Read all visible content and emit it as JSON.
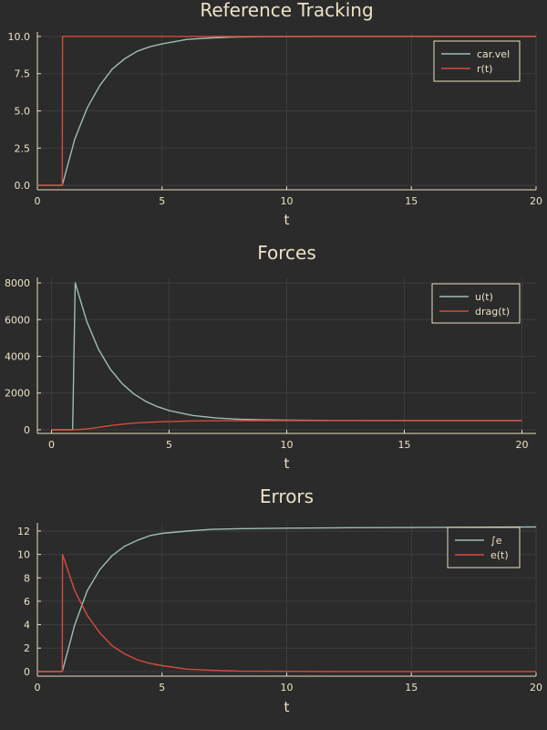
{
  "chart_data": [
    {
      "type": "line",
      "title": "Reference Tracking",
      "xlabel": "t",
      "ylabel": "",
      "xlim": [
        0,
        20
      ],
      "ylim": [
        -0.3,
        10.3
      ],
      "xticks": [
        0,
        5,
        10,
        15,
        20
      ],
      "xtick_labels": [
        "0",
        "5",
        "10",
        "15",
        "20"
      ],
      "yticks": [
        0,
        2.5,
        5,
        7.5,
        10
      ],
      "ytick_labels": [
        "0.0",
        "2.5",
        "5.0",
        "7.5",
        "10.0"
      ],
      "grid": true,
      "legend_position": "top-right",
      "series": [
        {
          "name": "car.vel",
          "color": "#9fbcb4",
          "x": [
            0,
            1,
            1.5,
            2,
            2.5,
            3,
            3.5,
            4,
            4.5,
            5,
            6,
            7,
            8,
            9,
            10,
            12,
            15,
            20
          ],
          "y": [
            0,
            0,
            3.1,
            5.2,
            6.7,
            7.8,
            8.5,
            9.0,
            9.3,
            9.5,
            9.8,
            9.9,
            9.96,
            9.98,
            9.99,
            10,
            10,
            10
          ]
        },
        {
          "name": "r(t)",
          "color": "#d84a3c",
          "x": [
            0,
            1,
            1.01,
            20
          ],
          "y": [
            0,
            0,
            10,
            10
          ]
        }
      ]
    },
    {
      "type": "line",
      "title": "Forces",
      "xlabel": "t",
      "ylabel": "",
      "xlim": [
        -0.6,
        20.6
      ],
      "ylim": [
        -200,
        8300
      ],
      "xticks": [
        0,
        5,
        10,
        15,
        20
      ],
      "xtick_labels": [
        "0",
        "5",
        "10",
        "15",
        "20"
      ],
      "yticks": [
        0,
        2000,
        4000,
        6000,
        8000
      ],
      "ytick_labels": [
        "0",
        "2000",
        "4000",
        "6000",
        "8000"
      ],
      "grid": true,
      "legend_position": "top-right",
      "series": [
        {
          "name": "u(t)",
          "color": "#9fbcb4",
          "x": [
            0,
            0.9,
            1.01,
            1.5,
            2,
            2.5,
            3,
            3.5,
            4,
            4.5,
            5,
            6,
            7,
            8,
            9,
            10,
            12,
            15,
            20
          ],
          "y": [
            0,
            0,
            8000,
            5900,
            4380,
            3300,
            2520,
            1950,
            1550,
            1260,
            1050,
            780,
            640,
            570,
            540,
            520,
            505,
            500,
            500
          ]
        },
        {
          "name": "drag(t)",
          "color": "#d84a3c",
          "x": [
            0,
            1,
            1.5,
            2,
            2.5,
            3,
            3.5,
            4,
            4.5,
            5,
            6,
            7,
            8,
            10,
            12,
            15,
            20
          ],
          "y": [
            0,
            0,
            45,
            135,
            225,
            300,
            360,
            400,
            430,
            450,
            480,
            490,
            497,
            500,
            500,
            500,
            500
          ]
        }
      ]
    },
    {
      "type": "line",
      "title": "Errors",
      "xlabel": "t",
      "ylabel": "",
      "xlim": [
        0,
        20
      ],
      "ylim": [
        -0.4,
        12.7
      ],
      "xticks": [
        0,
        5,
        10,
        15,
        20
      ],
      "xtick_labels": [
        "0",
        "5",
        "10",
        "15",
        "20"
      ],
      "yticks": [
        0,
        2,
        4,
        6,
        8,
        10,
        12
      ],
      "ytick_labels": [
        "0",
        "2",
        "4",
        "6",
        "8",
        "10",
        "12"
      ],
      "grid": true,
      "legend_position": "top-right",
      "series": [
        {
          "name": "∫e",
          "color": "#9fbcb4",
          "x": [
            0,
            1,
            1.5,
            2,
            2.5,
            3,
            3.5,
            4,
            4.5,
            5,
            6,
            7,
            8,
            10,
            12,
            15,
            20
          ],
          "y": [
            0,
            0,
            4.0,
            6.9,
            8.7,
            9.9,
            10.7,
            11.2,
            11.6,
            11.8,
            12.0,
            12.15,
            12.2,
            12.25,
            12.28,
            12.3,
            12.35
          ]
        },
        {
          "name": "e(t)",
          "color": "#d84a3c",
          "x": [
            0,
            1,
            1.01,
            1.5,
            2,
            2.5,
            3,
            3.5,
            4,
            4.5,
            5,
            6,
            7,
            8,
            10,
            12,
            15,
            20
          ],
          "y": [
            0,
            0,
            10,
            6.9,
            4.8,
            3.3,
            2.2,
            1.5,
            1.0,
            0.7,
            0.5,
            0.2,
            0.1,
            0.04,
            0.01,
            0,
            0,
            0
          ]
        }
      ]
    }
  ]
}
